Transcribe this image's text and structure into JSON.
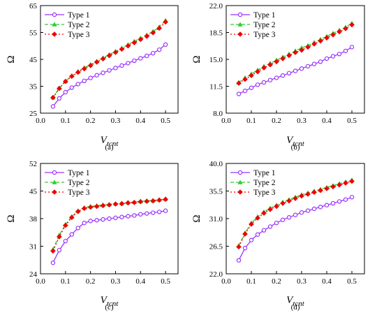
{
  "legend_colors": {
    "Type 1": "#9933ff",
    "Type 2": "#33cc33",
    "Type 3": "#ee0000"
  },
  "chart_data": [
    {
      "type": "line",
      "panel_label": "(a)",
      "xlabel": "V",
      "xlabel_sub": "tcnt",
      "ylabel": "Ω",
      "xlim": [
        0.0,
        0.55
      ],
      "ylim": [
        25,
        65
      ],
      "xticks": [
        "0.0",
        "0.1",
        "0.2",
        "0.3",
        "0.4",
        "0.5"
      ],
      "yticks": [
        "25",
        "35",
        "45",
        "55",
        "65"
      ],
      "grid": false,
      "legend_position": "top-left",
      "x": [
        0.05,
        0.075,
        0.1,
        0.125,
        0.15,
        0.175,
        0.2,
        0.225,
        0.25,
        0.275,
        0.3,
        0.325,
        0.35,
        0.375,
        0.4,
        0.425,
        0.45,
        0.475,
        0.5
      ],
      "series": [
        {
          "name": "Type 1",
          "values": [
            27.5,
            30.5,
            32.8,
            34.5,
            35.8,
            37.0,
            38.1,
            39.1,
            40.0,
            40.9,
            41.8,
            42.7,
            43.6,
            44.5,
            45.4,
            46.3,
            47.3,
            48.6,
            50.5
          ]
        },
        {
          "name": "Type 2",
          "values": [
            30.8,
            34.3,
            36.9,
            38.9,
            40.5,
            41.9,
            43.1,
            44.3,
            45.6,
            46.8,
            48.0,
            49.2,
            50.5,
            51.7,
            52.9,
            54.1,
            55.4,
            57.1,
            59.5
          ]
        },
        {
          "name": "Type 3",
          "values": [
            30.8,
            34.2,
            36.8,
            38.7,
            40.2,
            41.5,
            42.7,
            44.0,
            45.2,
            46.4,
            47.6,
            48.8,
            50.0,
            51.2,
            52.4,
            53.6,
            54.9,
            56.6,
            58.9
          ]
        }
      ]
    },
    {
      "type": "line",
      "panel_label": "(b)",
      "xlabel": "V",
      "xlabel_sub": "tcnt",
      "ylabel": "Ω",
      "xlim": [
        0.0,
        0.55
      ],
      "ylim": [
        8.0,
        22.0
      ],
      "xticks": [
        "0.0",
        "0.1",
        "0.2",
        "0.3",
        "0.4",
        "0.5"
      ],
      "yticks": [
        "8.0",
        "11.5",
        "15.0",
        "18.5",
        "22.0"
      ],
      "grid": false,
      "legend_position": "top-left",
      "x": [
        0.05,
        0.075,
        0.1,
        0.125,
        0.15,
        0.175,
        0.2,
        0.225,
        0.25,
        0.275,
        0.3,
        0.325,
        0.35,
        0.375,
        0.4,
        0.425,
        0.45,
        0.475,
        0.5
      ],
      "series": [
        {
          "name": "Type 1",
          "values": [
            10.5,
            10.9,
            11.3,
            11.7,
            12.0,
            12.3,
            12.6,
            12.9,
            13.2,
            13.5,
            13.8,
            14.1,
            14.4,
            14.7,
            15.1,
            15.4,
            15.7,
            16.1,
            16.6
          ]
        },
        {
          "name": "Type 2",
          "values": [
            12.0,
            12.6,
            13.1,
            13.6,
            14.1,
            14.5,
            14.9,
            15.3,
            15.7,
            16.1,
            16.5,
            16.8,
            17.2,
            17.6,
            18.0,
            18.4,
            18.8,
            19.2,
            19.7
          ]
        },
        {
          "name": "Type 3",
          "values": [
            11.9,
            12.4,
            12.9,
            13.4,
            13.9,
            14.3,
            14.7,
            15.1,
            15.5,
            15.9,
            16.2,
            16.6,
            17.0,
            17.4,
            17.8,
            18.2,
            18.6,
            19.0,
            19.5
          ]
        }
      ]
    },
    {
      "type": "line",
      "panel_label": "(c)",
      "xlabel": "V",
      "xlabel_sub": "tcnt",
      "ylabel": "Ω",
      "xlim": [
        0.0,
        0.55
      ],
      "ylim": [
        24,
        52
      ],
      "xticks": [
        "0.0",
        "0.1",
        "0.2",
        "0.3",
        "0.4",
        "0.5"
      ],
      "yticks": [
        "24",
        "31",
        "38",
        "45",
        "52"
      ],
      "grid": false,
      "legend_position": "top-left",
      "x": [
        0.05,
        0.075,
        0.1,
        0.125,
        0.15,
        0.175,
        0.2,
        0.225,
        0.25,
        0.275,
        0.3,
        0.325,
        0.35,
        0.375,
        0.4,
        0.425,
        0.45,
        0.475,
        0.5
      ],
      "series": [
        {
          "name": "Type 1",
          "values": [
            26.8,
            30.0,
            32.3,
            34.0,
            35.6,
            36.9,
            37.4,
            37.6,
            37.8,
            38.0,
            38.2,
            38.4,
            38.6,
            38.8,
            39.1,
            39.3,
            39.5,
            39.7,
            40.0
          ]
        },
        {
          "name": "Type 2",
          "values": [
            30.2,
            33.8,
            36.5,
            38.5,
            40.0,
            40.8,
            41.1,
            41.3,
            41.5,
            41.6,
            41.8,
            41.9,
            42.1,
            42.2,
            42.4,
            42.5,
            42.6,
            42.8,
            43.0
          ]
        },
        {
          "name": "Type 3",
          "values": [
            29.8,
            33.4,
            36.3,
            38.3,
            39.8,
            40.6,
            40.9,
            41.1,
            41.3,
            41.5,
            41.7,
            41.8,
            42.0,
            42.1,
            42.3,
            42.4,
            42.5,
            42.7,
            42.9
          ]
        }
      ]
    },
    {
      "type": "line",
      "panel_label": "(d)",
      "xlabel": "V",
      "xlabel_sub": "tcnt",
      "ylabel": "Ω",
      "xlim": [
        0.0,
        0.55
      ],
      "ylim": [
        22.0,
        40.0
      ],
      "xticks": [
        "0.0",
        "0.1",
        "0.2",
        "0.3",
        "0.4",
        "0.5"
      ],
      "yticks": [
        "22.0",
        "26.5",
        "31.0",
        "35.5",
        "40.0"
      ],
      "grid": false,
      "legend_position": "top-left",
      "x": [
        0.05,
        0.075,
        0.1,
        0.125,
        0.15,
        0.175,
        0.2,
        0.225,
        0.25,
        0.275,
        0.3,
        0.325,
        0.35,
        0.375,
        0.4,
        0.425,
        0.45,
        0.475,
        0.5
      ],
      "series": [
        {
          "name": "Type 1",
          "values": [
            24.2,
            26.2,
            27.5,
            28.4,
            29.1,
            29.7,
            30.3,
            30.8,
            31.2,
            31.6,
            32.0,
            32.3,
            32.6,
            32.9,
            33.2,
            33.5,
            33.8,
            34.1,
            34.5
          ]
        },
        {
          "name": "Type 2",
          "values": [
            26.6,
            28.7,
            30.3,
            31.3,
            32.1,
            32.7,
            33.2,
            33.7,
            34.1,
            34.5,
            34.9,
            35.2,
            35.5,
            35.8,
            36.1,
            36.4,
            36.7,
            37.0,
            37.3
          ]
        },
        {
          "name": "Type 3",
          "values": [
            26.4,
            28.5,
            30.1,
            31.1,
            31.9,
            32.5,
            33.0,
            33.5,
            33.9,
            34.3,
            34.7,
            35.0,
            35.3,
            35.6,
            35.9,
            36.2,
            36.5,
            36.8,
            37.1
          ]
        }
      ]
    }
  ]
}
